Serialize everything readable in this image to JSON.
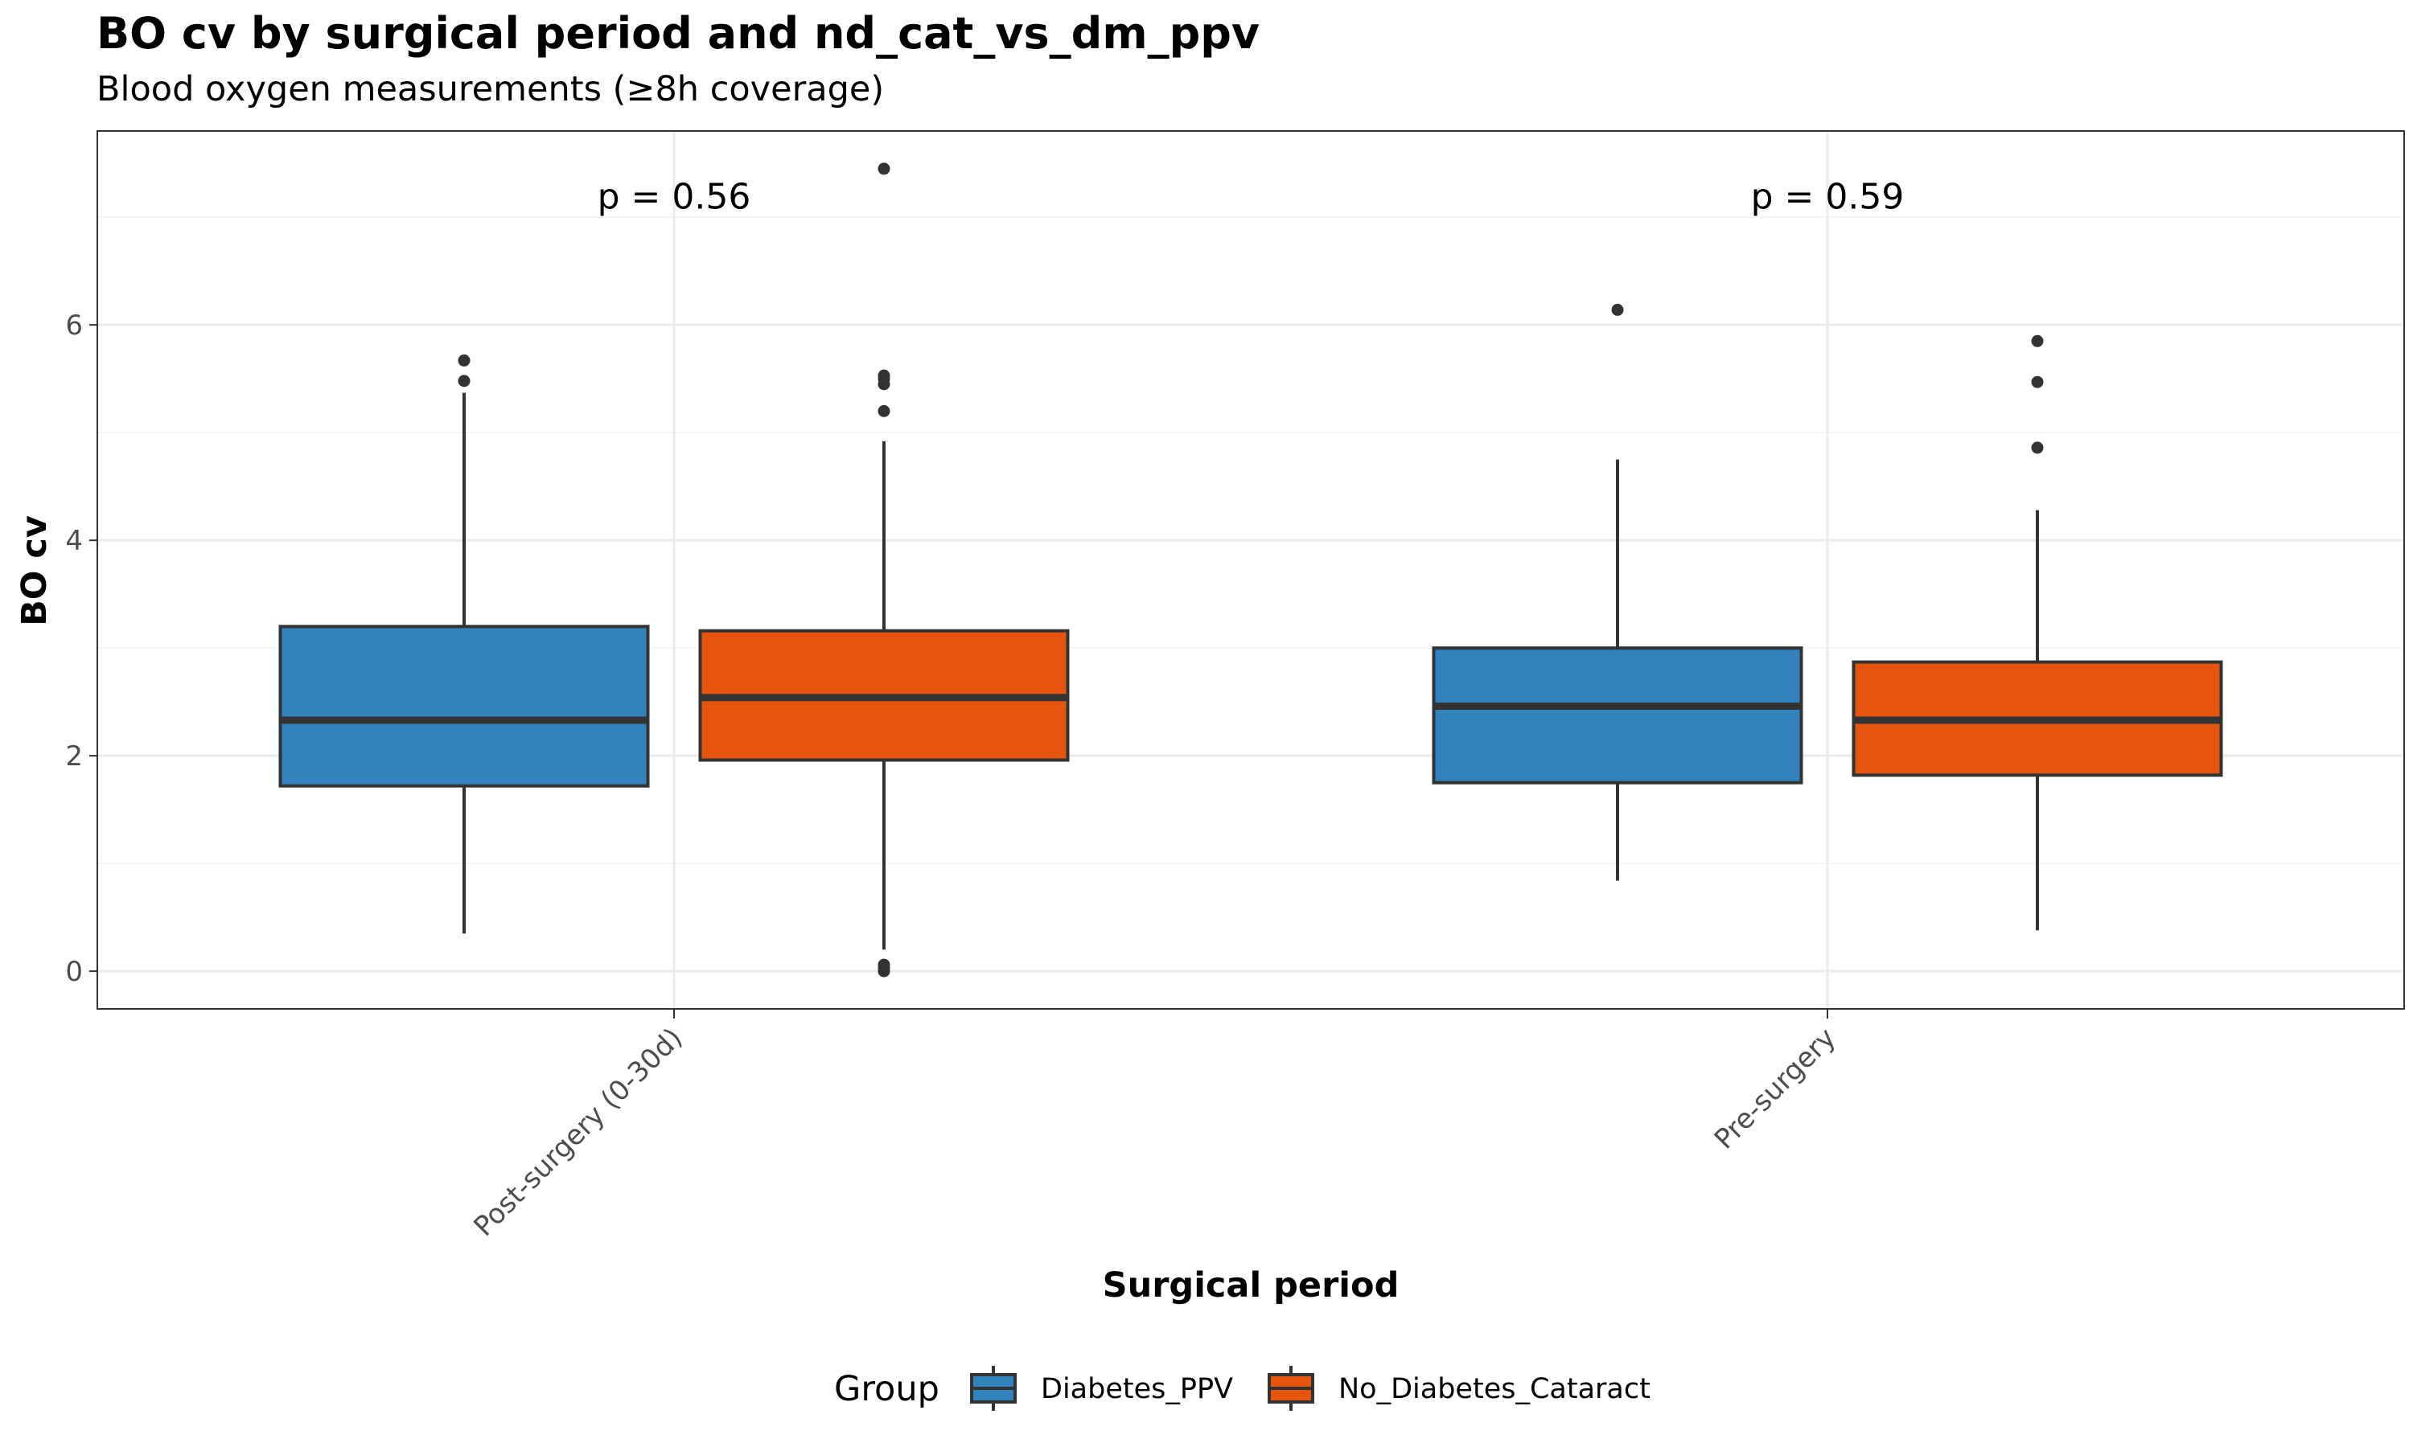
{
  "chart_data": {
    "type": "box",
    "title": "BO cv by surgical period and nd_cat_vs_dm_ppv",
    "subtitle": "Blood oxygen measurements (≥8h coverage)",
    "xlabel": "Surgical period",
    "ylabel": "BO cv",
    "ylim": [
      -0.35,
      7.8
    ],
    "yticks": [
      0,
      2,
      4,
      6
    ],
    "grid": true,
    "legend": {
      "title": "Group",
      "position": "bottom"
    },
    "categories": [
      "Post-surgery (0-30d)",
      "Pre-surgery"
    ],
    "series": [
      {
        "name": "Diabetes_PPV",
        "color": "#3182bd",
        "boxes": [
          {
            "whisker_low": 0.35,
            "q1": 1.72,
            "median": 2.33,
            "q3": 3.2,
            "whisker_high": 5.37,
            "outliers": [
              5.48,
              5.67
            ]
          },
          {
            "whisker_low": 0.84,
            "q1": 1.75,
            "median": 2.46,
            "q3": 3.0,
            "whisker_high": 4.75,
            "outliers": [
              6.14
            ]
          }
        ]
      },
      {
        "name": "No_Diabetes_Cataract",
        "color": "#e6550d",
        "boxes": [
          {
            "whisker_low": 0.2,
            "q1": 1.96,
            "median": 2.54,
            "q3": 3.16,
            "whisker_high": 4.92,
            "outliers": [
              0.0,
              0.03,
              0.06,
              5.2,
              5.45,
              5.5,
              5.53,
              7.45
            ]
          },
          {
            "whisker_low": 0.38,
            "q1": 1.82,
            "median": 2.33,
            "q3": 2.87,
            "whisker_high": 4.28,
            "outliers": [
              4.86,
              5.47,
              5.85
            ]
          }
        ]
      }
    ],
    "annotations": [
      {
        "category": "Post-surgery (0-30d)",
        "text": "p = 0.56",
        "y": 7.2
      },
      {
        "category": "Pre-surgery",
        "text": "p = 0.59",
        "y": 7.2
      }
    ]
  }
}
